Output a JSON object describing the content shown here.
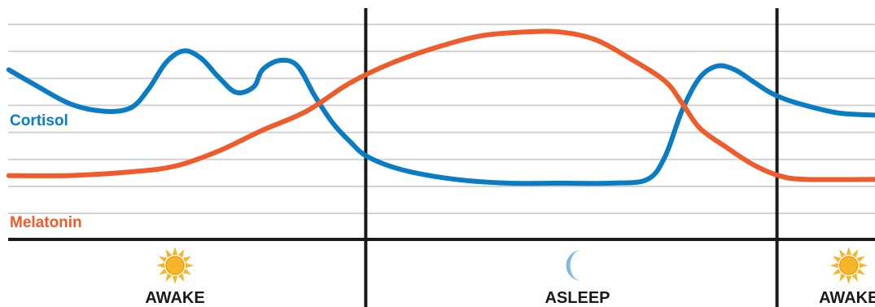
{
  "chart_data": {
    "type": "line",
    "title": "",
    "xlabel": "",
    "ylabel": "",
    "x_range": [
      0,
      100
    ],
    "ylim": [
      0,
      100
    ],
    "grid": true,
    "colors": {
      "cortisol": "#0a7cc4",
      "melatonin": "#ef5b2b"
    },
    "series": [
      {
        "name": "Cortisol",
        "color": "#0a7cc4",
        "points": [
          [
            1,
            76
          ],
          [
            4,
            68
          ],
          [
            8,
            58
          ],
          [
            12,
            54
          ],
          [
            15,
            56
          ],
          [
            17,
            66
          ],
          [
            19,
            80
          ],
          [
            21,
            86
          ],
          [
            23,
            82
          ],
          [
            25,
            72
          ],
          [
            27,
            64
          ],
          [
            29,
            67
          ],
          [
            30,
            76
          ],
          [
            32,
            81
          ],
          [
            34,
            78
          ],
          [
            36,
            62
          ],
          [
            38,
            48
          ],
          [
            40,
            38
          ],
          [
            42,
            30
          ],
          [
            46,
            23
          ],
          [
            52,
            18
          ],
          [
            58,
            16
          ],
          [
            64,
            16
          ],
          [
            70,
            16
          ],
          [
            74,
            18
          ],
          [
            76,
            30
          ],
          [
            78,
            55
          ],
          [
            80,
            72
          ],
          [
            82,
            78
          ],
          [
            84,
            76
          ],
          [
            86,
            70
          ],
          [
            88,
            64
          ],
          [
            90,
            60
          ],
          [
            93,
            56
          ],
          [
            96,
            53
          ],
          [
            100,
            52
          ]
        ]
      },
      {
        "name": "Melatonin",
        "color": "#ef5b2b",
        "points": [
          [
            1,
            20
          ],
          [
            8,
            20
          ],
          [
            15,
            22
          ],
          [
            20,
            25
          ],
          [
            25,
            33
          ],
          [
            30,
            44
          ],
          [
            35,
            54
          ],
          [
            40,
            69
          ],
          [
            45,
            80
          ],
          [
            50,
            88
          ],
          [
            55,
            94
          ],
          [
            60,
            96
          ],
          [
            64,
            96
          ],
          [
            68,
            92
          ],
          [
            72,
            82
          ],
          [
            76,
            70
          ],
          [
            78,
            58
          ],
          [
            80,
            45
          ],
          [
            83,
            35
          ],
          [
            86,
            26
          ],
          [
            89,
            20
          ],
          [
            92,
            18
          ],
          [
            100,
            18
          ]
        ]
      }
    ],
    "phases": [
      {
        "label": "AWAKE",
        "icon": "sun-icon",
        "x_center": 20
      },
      {
        "label": "ASLEEP",
        "icon": "moon-icon",
        "x_center": 66
      },
      {
        "label": "AWAKE",
        "icon": "sun-icon",
        "x_center": 97
      }
    ],
    "dividers_x": [
      41.8,
      88.8
    ]
  },
  "labels": {
    "cortisol": "Cortisol",
    "melatonin": "Melatonin"
  }
}
